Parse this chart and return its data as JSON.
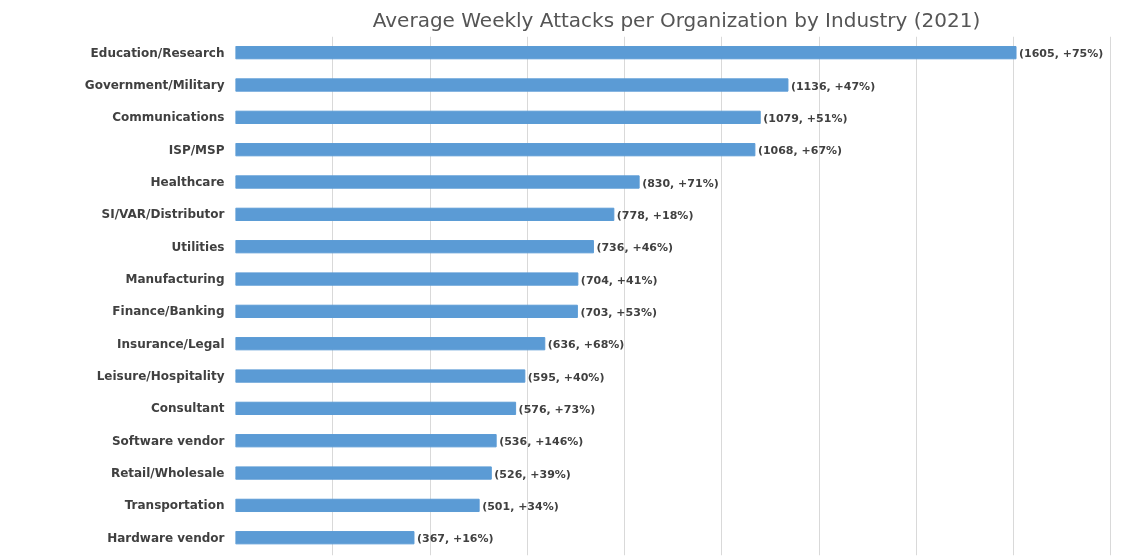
{
  "chart_data": {
    "type": "bar",
    "orientation": "horizontal",
    "title": "Average Weekly Attacks per Organization by Industry (2021)",
    "categories": [
      "Education/Research",
      "Government/Military",
      "Communications",
      "ISP/MSP",
      "Healthcare",
      "SI/VAR/Distributor",
      "Utilities",
      "Manufacturing",
      "Finance/Banking",
      "Insurance/Legal",
      "Leisure/Hospitality",
      "Consultant",
      "Software vendor",
      "Retail/Wholesale",
      "Transportation",
      "Hardware vendor"
    ],
    "values": [
      1605,
      1136,
      1079,
      1068,
      830,
      778,
      736,
      704,
      703,
      636,
      595,
      576,
      536,
      526,
      501,
      367
    ],
    "value_labels": [
      "(1605, +75%)",
      "(1136, +47%)",
      "(1079, +51%)",
      "(1068, +67%)",
      "(830, +71%)",
      "(778, +18%)",
      "(736, +46%)",
      "(704, +41%)",
      "(703, +53%)",
      "(636, +68%)",
      "(595, +40%)",
      "(576, +73%)",
      "(536, +146%)",
      "(526, +39%)",
      "(501, +34%)",
      "(367, +16%)"
    ],
    "color": "#5b9bd5",
    "grid": "x",
    "tick_labels": "y"
  }
}
